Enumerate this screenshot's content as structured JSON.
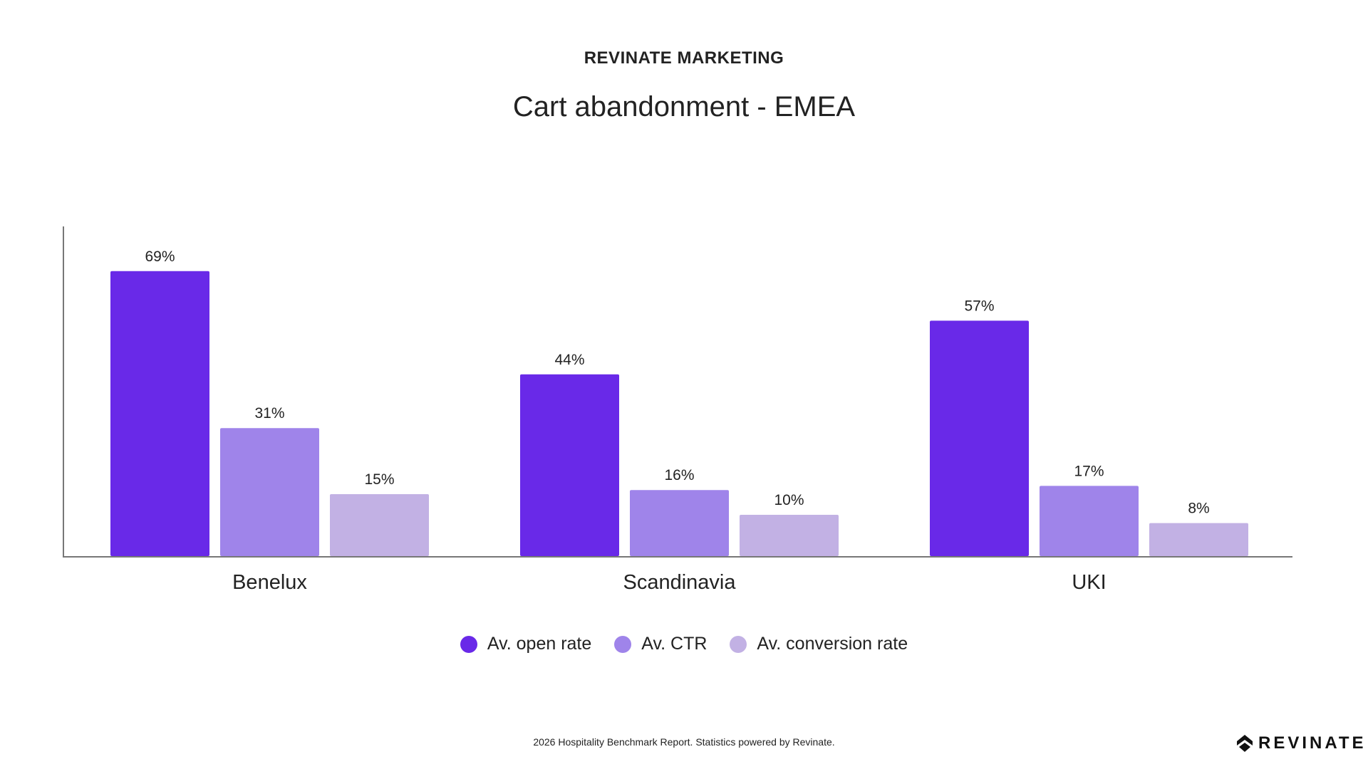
{
  "header": {
    "kicker": "REVINATE MARKETING"
  },
  "footer": {
    "note": "2026 Hospitality Benchmark Report. Statistics powered by Revinate.",
    "logo_text": "REVINATE"
  },
  "chart_data": {
    "type": "bar",
    "title": "Cart abandonment - EMEA",
    "categories": [
      "Benelux",
      "Scandinavia",
      "UKI"
    ],
    "series": [
      {
        "name": "Av. open rate",
        "color": "#6929e8",
        "values": [
          69,
          44,
          57
        ],
        "labels": [
          "69%",
          "44%",
          "57%"
        ]
      },
      {
        "name": "Av. CTR",
        "color": "#9f84ea",
        "values": [
          31,
          16,
          17
        ],
        "labels": [
          "31%",
          "16%",
          "17%"
        ]
      },
      {
        "name": "Av. conversion rate",
        "color": "#c2b1e4",
        "values": [
          15,
          10,
          8
        ],
        "labels": [
          "15%",
          "10%",
          "8%"
        ]
      }
    ],
    "xlabel": "",
    "ylabel": "",
    "ylim": [
      0,
      80
    ],
    "grid": false,
    "legend": "bottom-center"
  }
}
